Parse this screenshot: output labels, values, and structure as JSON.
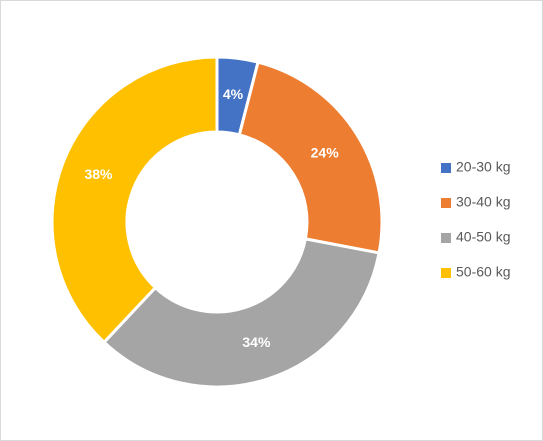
{
  "chart_data": {
    "type": "donut",
    "categories": [
      "20-30 kg",
      "30-40 kg",
      "40-50 kg",
      "50-60 kg"
    ],
    "values": [
      4,
      24,
      34,
      38
    ],
    "value_labels": [
      "4%",
      "24%",
      "34%",
      "38%"
    ],
    "colors": [
      "#4472c4",
      "#ed7d31",
      "#a5a5a5",
      "#ffc000"
    ],
    "legend": "right"
  }
}
